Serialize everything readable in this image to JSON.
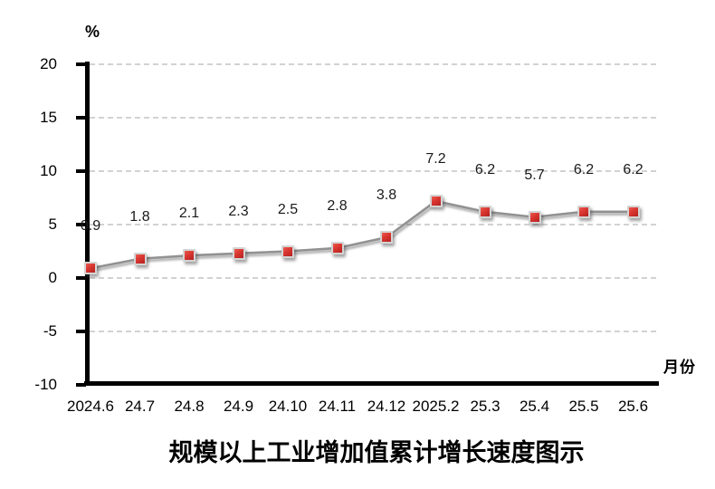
{
  "chart_data": {
    "type": "line",
    "title": "规模以上工业增加值累计增长速度图示",
    "y_axis_unit": "%",
    "x_axis_label": "月份",
    "categories": [
      "2024.6",
      "24.7",
      "24.8",
      "24.9",
      "24.10",
      "24.11",
      "24.12",
      "2025.2",
      "25.3",
      "25.4",
      "25.5",
      "25.6"
    ],
    "values": [
      0.9,
      1.8,
      2.1,
      2.3,
      2.5,
      2.8,
      3.8,
      7.2,
      6.2,
      5.7,
      6.2,
      6.2
    ],
    "data_labels_shown": true,
    "ylim": [
      -10,
      20
    ],
    "y_ticks": [
      20,
      15,
      10,
      5,
      0,
      -5,
      -10
    ],
    "grid": "horizontal-dashed",
    "legend_position": "none",
    "colors": {
      "marker_fill": "#d93630",
      "marker_fill_dark": "#b52220",
      "marker_border": "#d4d4d4",
      "line": "#919191",
      "gridline": "#b8b8b8",
      "axis": "#000000",
      "text": "#000000"
    }
  }
}
